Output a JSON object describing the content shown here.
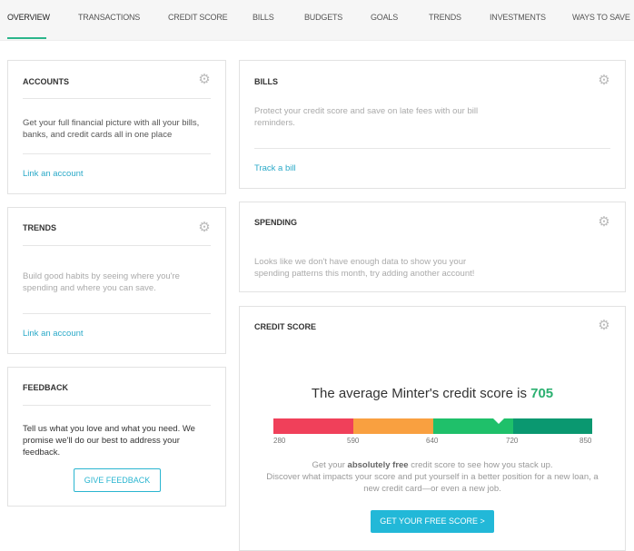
{
  "nav": {
    "tabs": [
      "OVERVIEW",
      "TRANSACTIONS",
      "CREDIT SCORE",
      "BILLS",
      "BUDGETS",
      "GOALS",
      "TRENDS",
      "INVESTMENTS",
      "WAYS TO SAVE"
    ],
    "active": "OVERVIEW"
  },
  "accounts": {
    "title": "ACCOUNTS",
    "text": "Get your full financial picture with all your bills, banks, and credit cards all in one place",
    "link": "Link an account"
  },
  "trends": {
    "title": "TRENDS",
    "text": "Build good habits by seeing where you're spending and where you can save.",
    "link": "Link an account"
  },
  "feedback": {
    "title": "FEEDBACK",
    "text": "Tell us what you love and what you need. We promise we'll do our best to address your feedback.",
    "button": "GIVE FEEDBACK"
  },
  "bills": {
    "title": "BILLS",
    "text": "Protect your credit score and save on late fees with our bill reminders.",
    "link": "Track a bill"
  },
  "spending": {
    "title": "SPENDING",
    "text": "Looks like we don't have enough data to show you your spending patterns this month, try adding another account!"
  },
  "credit": {
    "title": "CREDIT SCORE",
    "headline": "The average Minter's credit score is",
    "score": "705",
    "ticks": [
      "280",
      "590",
      "640",
      "720",
      "850"
    ],
    "colors": [
      "#f0405a",
      "#f9a040",
      "#1fc06a",
      "#0a9870"
    ],
    "desc_pre": "Get your ",
    "desc_bold": "absolutely free",
    "desc_post": " credit score to see how you stack up.",
    "desc2": "Discover what impacts your score and put yourself in a better position for a new loan, a new credit card—or even a new job.",
    "button": "GET YOUR FREE SCORE >"
  },
  "icons": {
    "settings": "gear-icon"
  }
}
